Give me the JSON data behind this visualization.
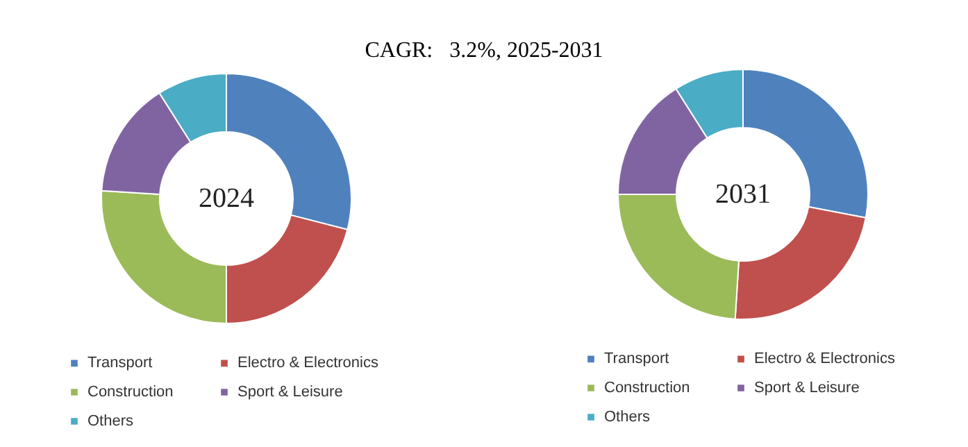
{
  "chart_data": [
    {
      "type": "donut",
      "title": "2024",
      "annotations": [
        "CAGR:   3.2%, 2025-2031"
      ],
      "categories": [
        "Transport",
        "Electro & Electronics",
        "Construction",
        "Sport & Leisure",
        "Others"
      ],
      "values": [
        29,
        21,
        26,
        15,
        9
      ],
      "colors": [
        "#4f81bd",
        "#c0504d",
        "#9bbb59",
        "#8064a2",
        "#4bacc6"
      ],
      "legend": "bottom"
    },
    {
      "type": "donut",
      "title": "2031",
      "categories": [
        "Transport",
        "Electro & Electronics",
        "Construction",
        "Sport & Leisure",
        "Others"
      ],
      "values": [
        28,
        23,
        24,
        16,
        9
      ],
      "colors": [
        "#4f81bd",
        "#c0504d",
        "#9bbb59",
        "#8064a2",
        "#4bacc6"
      ],
      "legend": "bottom"
    }
  ]
}
